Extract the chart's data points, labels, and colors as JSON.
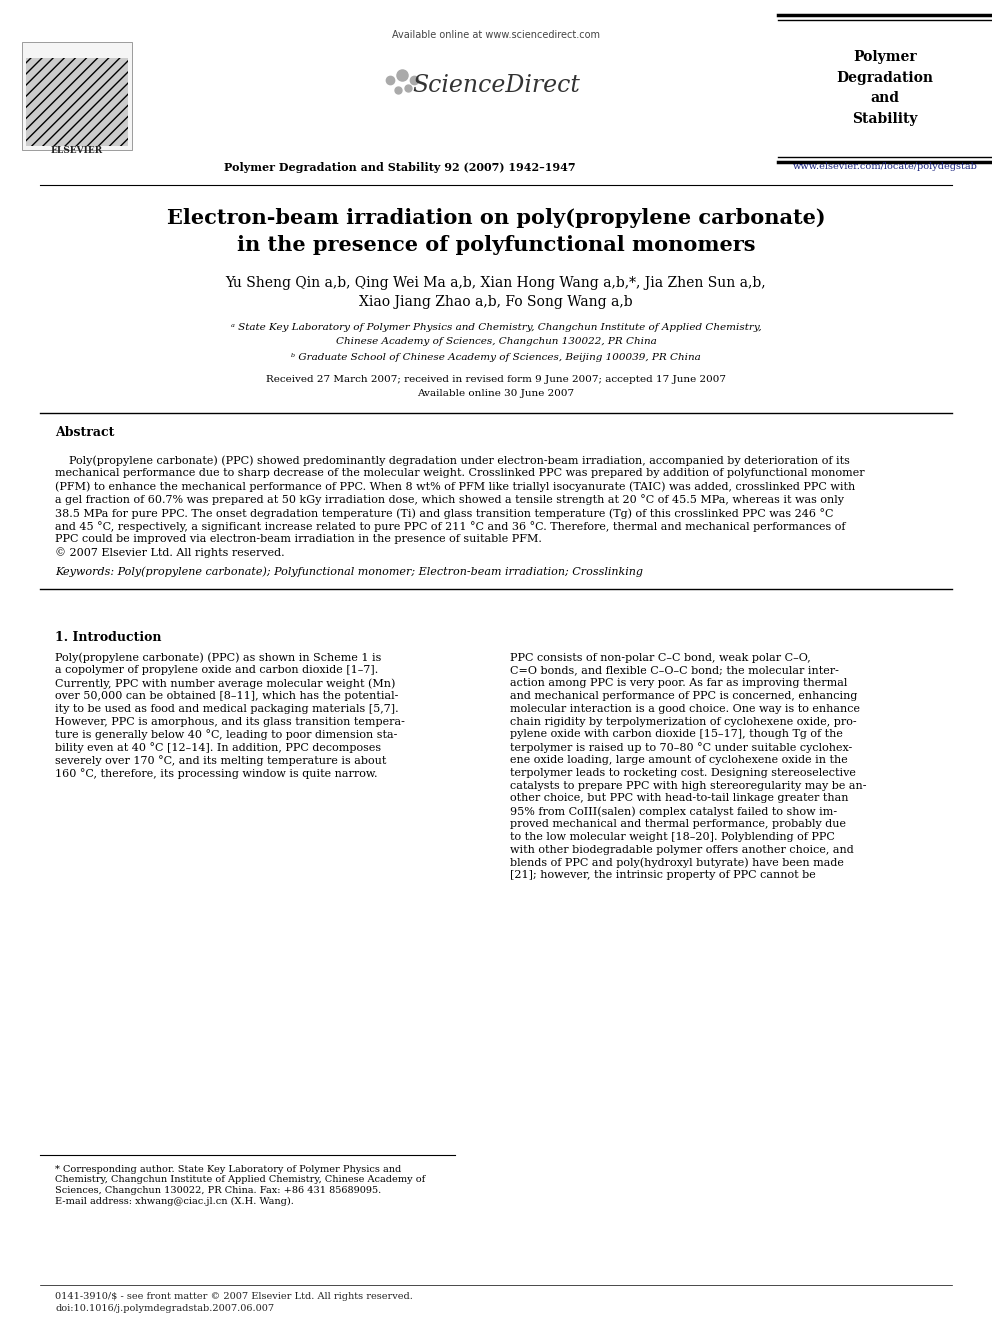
{
  "bg_color": "#ffffff",
  "available_online_text": "Available online at www.sciencedirect.com",
  "sciencedirect_text": "ScienceDirect",
  "journal_ref": "Polymer Degradation and Stability 92 (2007) 1942–1947",
  "journal_name": "Polymer\nDegradation\nand\nStability",
  "url_text": "www.elsevier.com/locate/polydegstab",
  "title_line1": "Electron-beam irradiation on poly(propylene carbonate)",
  "title_line2": "in the presence of polyfunctional monomers",
  "authors_line1": "Yu Sheng Qin a,b, Qing Wei Ma a,b, Xian Hong Wang a,b,*, Jia Zhen Sun a,b,",
  "authors_line2": "Xiao Jiang Zhao a,b, Fo Song Wang a,b",
  "affil_a1": "ᵃ State Key Laboratory of Polymer Physics and Chemistry, Changchun Institute of Applied Chemistry,",
  "affil_a2": "Chinese Academy of Sciences, Changchun 130022, PR China",
  "affil_b": "ᵇ Graduate School of Chinese Academy of Sciences, Beijing 100039, PR China",
  "received": "Received 27 March 2007; received in revised form 9 June 2007; accepted 17 June 2007",
  "available": "Available online 30 June 2007",
  "abstract_title": "Abstract",
  "abstract_body": "    Poly(propylene carbonate) (PPC) showed predominantly degradation under electron-beam irradiation, accompanied by deterioration of its mechanical performance due to sharp decrease of the molecular weight. Crosslinked PPC was prepared by addition of polyfunctional monomer (PFM) to enhance the mechanical performance of PPC. When 8 wt% of PFM like triallyl isocyanurate (TAIC) was added, crosslinked PPC with a gel fraction of 60.7% was prepared at 50 kGy irradiation dose, which showed a tensile strength at 20 °C of 45.5 MPa, whereas it was only 38.5 MPa for pure PPC. The onset degradation temperature (Ti) and glass transition temperature (Tg) of this crosslinked PPC was 246 °C and 45 °C, respectively, a significant increase related to pure PPC of 211 °C and 36 °C. Therefore, thermal and mechanical performances of PPC could be improved via electron-beam irradiation in the presence of suitable PFM.",
  "copyright": "© 2007 Elsevier Ltd. All rights reserved.",
  "keywords": "Keywords: Poly(propylene carbonate); Polyfunctional monomer; Electron-beam irradiation; Crosslinking",
  "intro_title": "1. Introduction",
  "intro_col1_lines": [
    "Poly(propylene carbonate) (PPC) as shown in Scheme 1 is",
    "a copolymer of propylene oxide and carbon dioxide [1–7].",
    "Currently, PPC with number average molecular weight (Mn)",
    "over 50,000 can be obtained [8–11], which has the potential-",
    "ity to be used as food and medical packaging materials [5,7].",
    "However, PPC is amorphous, and its glass transition tempera-",
    "ture is generally below 40 °C, leading to poor dimension sta-",
    "bility even at 40 °C [12–14]. In addition, PPC decomposes",
    "severely over 170 °C, and its melting temperature is about",
    "160 °C, therefore, its processing window is quite narrow."
  ],
  "intro_col2_lines": [
    "PPC consists of non-polar C–C bond, weak polar C–O,",
    "C=O bonds, and flexible C–O–C bond; the molecular inter-",
    "action among PPC is very poor. As far as improving thermal",
    "and mechanical performance of PPC is concerned, enhancing",
    "molecular interaction is a good choice. One way is to enhance",
    "chain rigidity by terpolymerization of cyclohexene oxide, pro-",
    "pylene oxide with carbon dioxide [15–17], though Tg of the",
    "terpolymer is raised up to 70–80 °C under suitable cyclohex-",
    "ene oxide loading, large amount of cyclohexene oxide in the",
    "terpolymer leads to rocketing cost. Designing stereoselective",
    "catalysts to prepare PPC with high stereoregularity may be an-",
    "other choice, but PPC with head-to-tail linkage greater than",
    "95% from CoIII(salen) complex catalyst failed to show im-",
    "proved mechanical and thermal performance, probably due",
    "to the low molecular weight [18–20]. Polyblending of PPC",
    "with other biodegradable polymer offers another choice, and",
    "blends of PPC and poly(hydroxyl butyrate) have been made",
    "[21]; however, the intrinsic property of PPC cannot be"
  ],
  "footnote_star": "* Corresponding author. State Key Laboratory of Polymer Physics and",
  "footnote_lines": [
    "Chemistry, Changchun Institute of Applied Chemistry, Chinese Academy of",
    "Sciences, Changchun 130022, PR China. Fax: +86 431 85689095.",
    "E-mail address: xhwang@ciac.jl.cn (X.H. Wang)."
  ],
  "bottom_line1": "0141-3910/$ - see front matter © 2007 Elsevier Ltd. All rights reserved.",
  "bottom_line2": "doi:10.1016/j.polymdegradstab.2007.06.007",
  "link_color": "#1a237e",
  "scheme1_link_color": "#1565c0"
}
